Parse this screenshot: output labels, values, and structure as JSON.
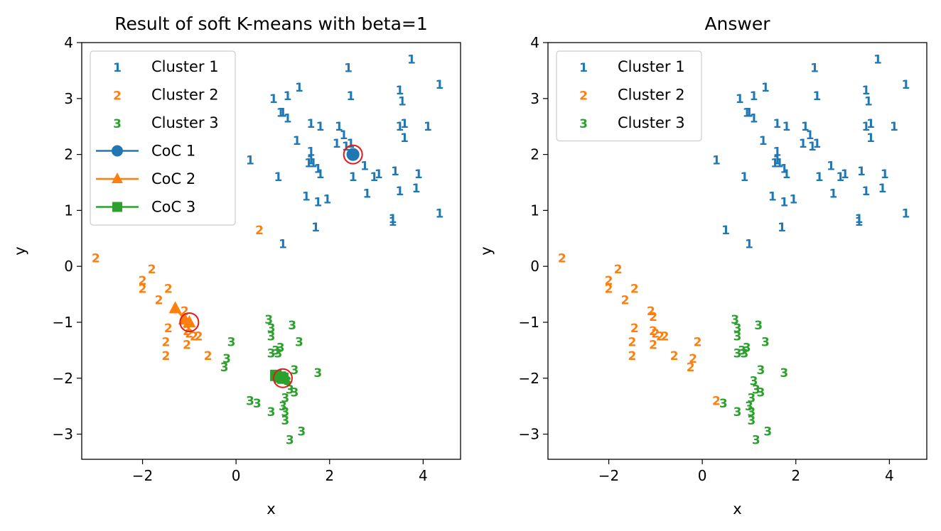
{
  "colors": {
    "c1": "#1f77b4",
    "c2": "#ff7f0e",
    "c3": "#2ca02c",
    "highlight": "#e31a1c"
  },
  "chart_data": [
    {
      "type": "scatter",
      "title": "Result of soft K-means with beta=1",
      "xlabel": "x",
      "ylabel": "y",
      "xlim": [
        -3.3,
        4.8
      ],
      "ylim": [
        -3.45,
        4.0
      ],
      "xticks": [
        -2,
        0,
        2,
        4
      ],
      "yticks": [
        -3,
        -2,
        -1,
        0,
        1,
        2,
        3,
        4
      ],
      "legend": "top-left",
      "legend_entries": [
        "Cluster 1",
        "Cluster 2",
        "Cluster 3",
        "CoC 1",
        "CoC 2",
        "CoC 3"
      ],
      "series": [
        {
          "name": "Cluster 1",
          "marker_label": "1",
          "color": "#1f77b4",
          "points": [
            [
              2.4,
              3.55
            ],
            [
              3.75,
              3.7
            ],
            [
              2.45,
              3.05
            ],
            [
              1.35,
              3.2
            ],
            [
              1.1,
              3.05
            ],
            [
              0.8,
              3.0
            ],
            [
              4.35,
              3.25
            ],
            [
              3.5,
              3.15
            ],
            [
              3.55,
              2.95
            ],
            [
              1.0,
              2.75
            ],
            [
              1.1,
              2.65
            ],
            [
              0.95,
              2.75
            ],
            [
              1.6,
              2.55
            ],
            [
              1.8,
              2.5
            ],
            [
              2.2,
              2.5
            ],
            [
              3.5,
              2.5
            ],
            [
              3.6,
              2.55
            ],
            [
              4.1,
              2.5
            ],
            [
              2.3,
              2.35
            ],
            [
              3.6,
              2.3
            ],
            [
              1.3,
              2.25
            ],
            [
              2.15,
              2.2
            ],
            [
              2.35,
              2.15
            ],
            [
              2.45,
              2.2
            ],
            [
              1.6,
              2.05
            ],
            [
              0.3,
              1.9
            ],
            [
              1.6,
              1.9
            ],
            [
              1.55,
              1.85
            ],
            [
              1.65,
              1.85
            ],
            [
              2.75,
              1.8
            ],
            [
              1.75,
              1.75
            ],
            [
              1.8,
              1.65
            ],
            [
              3.4,
              1.7
            ],
            [
              3.9,
              1.65
            ],
            [
              0.9,
              1.6
            ],
            [
              2.5,
              1.6
            ],
            [
              2.95,
              1.6
            ],
            [
              3.05,
              1.65
            ],
            [
              3.85,
              1.4
            ],
            [
              3.5,
              1.35
            ],
            [
              2.8,
              1.3
            ],
            [
              1.5,
              1.25
            ],
            [
              1.75,
              1.15
            ],
            [
              1.95,
              1.2
            ],
            [
              4.35,
              0.95
            ],
            [
              3.35,
              0.85
            ],
            [
              3.35,
              0.8
            ],
            [
              1.7,
              0.7
            ],
            [
              1.0,
              0.4
            ]
          ]
        },
        {
          "name": "Cluster 2",
          "marker_label": "2",
          "color": "#ff7f0e",
          "points": [
            [
              0.5,
              0.65
            ],
            [
              -3.0,
              0.15
            ],
            [
              -1.8,
              -0.05
            ],
            [
              -2.0,
              -0.25
            ],
            [
              -2.0,
              -0.4
            ],
            [
              -1.45,
              -0.4
            ],
            [
              -1.65,
              -0.6
            ],
            [
              -1.1,
              -0.8
            ],
            [
              -1.45,
              -1.1
            ],
            [
              -1.05,
              -1.15
            ],
            [
              -1.0,
              -1.2
            ],
            [
              -0.9,
              -1.25
            ],
            [
              -0.8,
              -1.25
            ],
            [
              -1.5,
              -1.35
            ],
            [
              -1.5,
              -1.6
            ],
            [
              -1.05,
              -1.4
            ],
            [
              -0.6,
              -1.6
            ]
          ]
        },
        {
          "name": "Cluster 3",
          "marker_label": "3",
          "color": "#2ca02c",
          "points": [
            [
              0.7,
              -0.95
            ],
            [
              0.75,
              -1.1
            ],
            [
              1.2,
              -1.05
            ],
            [
              0.75,
              -1.25
            ],
            [
              -0.1,
              -1.35
            ],
            [
              1.35,
              -1.35
            ],
            [
              0.95,
              -1.45
            ],
            [
              0.85,
              -1.5
            ],
            [
              0.9,
              -1.55
            ],
            [
              0.75,
              -1.55
            ],
            [
              -0.2,
              -1.65
            ],
            [
              -0.25,
              -1.8
            ],
            [
              1.25,
              -1.85
            ],
            [
              1.75,
              -1.9
            ],
            [
              1.1,
              -2.05
            ],
            [
              1.15,
              -2.2
            ],
            [
              1.25,
              -2.25
            ],
            [
              1.05,
              -2.35
            ],
            [
              0.3,
              -2.4
            ],
            [
              0.45,
              -2.45
            ],
            [
              1.0,
              -2.5
            ],
            [
              1.05,
              -2.6
            ],
            [
              0.75,
              -2.6
            ],
            [
              1.05,
              -2.75
            ],
            [
              1.4,
              -2.95
            ],
            [
              1.15,
              -3.1
            ]
          ]
        }
      ],
      "centers": [
        {
          "name": "CoC 1",
          "marker": "circle",
          "color": "#1f77b4",
          "path": [
            [
              2.5,
              2.0
            ],
            [
              2.5,
              2.0
            ]
          ]
        },
        {
          "name": "CoC 2",
          "marker": "triangle",
          "color": "#ff7f0e",
          "path": [
            [
              -1.3,
              -0.75
            ],
            [
              -1.1,
              -0.95
            ],
            [
              -1.0,
              -1.0
            ]
          ]
        },
        {
          "name": "CoC 3",
          "marker": "square",
          "color": "#2ca02c",
          "path": [
            [
              0.85,
              -1.95
            ],
            [
              0.95,
              -1.98
            ],
            [
              1.0,
              -2.0
            ]
          ]
        }
      ],
      "highlights": [
        [
          2.5,
          2.0
        ],
        [
          -1.0,
          -1.0
        ],
        [
          1.0,
          -2.0
        ]
      ]
    },
    {
      "type": "scatter",
      "title": "Answer",
      "xlabel": "x",
      "ylabel": "y",
      "xlim": [
        -3.3,
        4.8
      ],
      "ylim": [
        -3.45,
        4.0
      ],
      "xticks": [
        -2,
        0,
        2,
        4
      ],
      "yticks": [
        -3,
        -2,
        -1,
        0,
        1,
        2,
        3,
        4
      ],
      "legend": "top-left",
      "legend_entries": [
        "Cluster 1",
        "Cluster 2",
        "Cluster 3"
      ],
      "series": [
        {
          "name": "Cluster 1",
          "marker_label": "1",
          "color": "#1f77b4",
          "points": [
            [
              2.4,
              3.55
            ],
            [
              3.75,
              3.7
            ],
            [
              2.45,
              3.05
            ],
            [
              1.35,
              3.2
            ],
            [
              1.1,
              3.05
            ],
            [
              0.8,
              3.0
            ],
            [
              4.35,
              3.25
            ],
            [
              3.5,
              3.15
            ],
            [
              3.55,
              2.95
            ],
            [
              1.0,
              2.75
            ],
            [
              1.1,
              2.65
            ],
            [
              0.95,
              2.75
            ],
            [
              1.6,
              2.55
            ],
            [
              1.8,
              2.5
            ],
            [
              2.2,
              2.5
            ],
            [
              3.5,
              2.5
            ],
            [
              3.6,
              2.55
            ],
            [
              4.1,
              2.5
            ],
            [
              2.3,
              2.35
            ],
            [
              3.6,
              2.3
            ],
            [
              1.3,
              2.25
            ],
            [
              2.15,
              2.2
            ],
            [
              2.35,
              2.15
            ],
            [
              2.45,
              2.2
            ],
            [
              1.6,
              2.05
            ],
            [
              0.3,
              1.9
            ],
            [
              1.6,
              1.9
            ],
            [
              1.55,
              1.85
            ],
            [
              1.65,
              1.85
            ],
            [
              2.75,
              1.8
            ],
            [
              1.75,
              1.75
            ],
            [
              1.8,
              1.65
            ],
            [
              3.4,
              1.7
            ],
            [
              3.9,
              1.65
            ],
            [
              0.9,
              1.6
            ],
            [
              2.5,
              1.6
            ],
            [
              2.95,
              1.6
            ],
            [
              3.05,
              1.65
            ],
            [
              3.85,
              1.4
            ],
            [
              3.5,
              1.35
            ],
            [
              2.8,
              1.3
            ],
            [
              1.5,
              1.25
            ],
            [
              1.75,
              1.15
            ],
            [
              1.95,
              1.2
            ],
            [
              4.35,
              0.95
            ],
            [
              3.35,
              0.85
            ],
            [
              3.35,
              0.8
            ],
            [
              1.7,
              0.7
            ],
            [
              1.0,
              0.4
            ],
            [
              0.5,
              0.65
            ]
          ]
        },
        {
          "name": "Cluster 2",
          "marker_label": "2",
          "color": "#ff7f0e",
          "points": [
            [
              -3.0,
              0.15
            ],
            [
              -1.8,
              -0.05
            ],
            [
              -2.0,
              -0.25
            ],
            [
              -2.0,
              -0.4
            ],
            [
              -1.45,
              -0.4
            ],
            [
              -1.65,
              -0.6
            ],
            [
              -1.1,
              -0.8
            ],
            [
              -1.05,
              -0.9
            ],
            [
              -1.45,
              -1.1
            ],
            [
              -1.05,
              -1.15
            ],
            [
              -1.0,
              -1.2
            ],
            [
              -0.9,
              -1.25
            ],
            [
              -0.8,
              -1.25
            ],
            [
              -1.5,
              -1.35
            ],
            [
              -1.5,
              -1.6
            ],
            [
              -1.05,
              -1.4
            ],
            [
              -0.6,
              -1.6
            ],
            [
              -0.1,
              -1.35
            ],
            [
              -0.2,
              -1.65
            ],
            [
              -0.25,
              -1.8
            ],
            [
              0.3,
              -2.4
            ]
          ]
        },
        {
          "name": "Cluster 3",
          "marker_label": "3",
          "color": "#2ca02c",
          "points": [
            [
              0.7,
              -0.95
            ],
            [
              0.75,
              -1.1
            ],
            [
              1.2,
              -1.05
            ],
            [
              0.75,
              -1.25
            ],
            [
              1.35,
              -1.35
            ],
            [
              0.95,
              -1.45
            ],
            [
              0.85,
              -1.5
            ],
            [
              0.9,
              -1.55
            ],
            [
              0.75,
              -1.55
            ],
            [
              1.25,
              -1.85
            ],
            [
              1.75,
              -1.9
            ],
            [
              1.1,
              -2.05
            ],
            [
              1.15,
              -2.2
            ],
            [
              1.25,
              -2.25
            ],
            [
              1.05,
              -2.35
            ],
            [
              0.45,
              -2.45
            ],
            [
              1.0,
              -2.5
            ],
            [
              1.05,
              -2.6
            ],
            [
              0.75,
              -2.6
            ],
            [
              1.05,
              -2.75
            ],
            [
              1.4,
              -2.95
            ],
            [
              1.15,
              -3.1
            ]
          ]
        }
      ],
      "centers": [],
      "highlights": []
    }
  ]
}
